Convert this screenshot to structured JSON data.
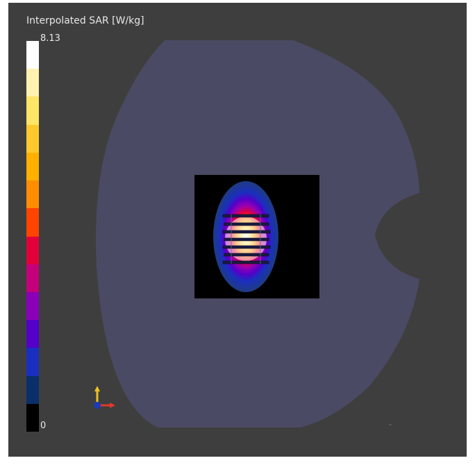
{
  "legend": {
    "title": "Interpolated SAR [W/kg]",
    "max_label": "8.13",
    "min_label": "0",
    "max_value": 8.13,
    "min_value": 0,
    "bands_top_to_bottom": [
      "#ffffff",
      "#fff2b0",
      "#ffe566",
      "#ffc92e",
      "#ffb000",
      "#ff8d00",
      "#ff4400",
      "#e3003a",
      "#c4007a",
      "#8a00b8",
      "#5500c8",
      "#1a2fbf",
      "#0a2f6a",
      "#000000"
    ]
  },
  "colors": {
    "viewport_background": "#3e3e3e",
    "phantom": "#4a4a64",
    "slice_background": "#000000",
    "coil_rungs": "#1a1a40"
  },
  "axes_triad": {
    "x_color": "#e03a2a",
    "y_color": "#f0c020",
    "z_color": "#1a3ab8"
  },
  "icons": {
    "orientation": "axes-triad-icon"
  }
}
